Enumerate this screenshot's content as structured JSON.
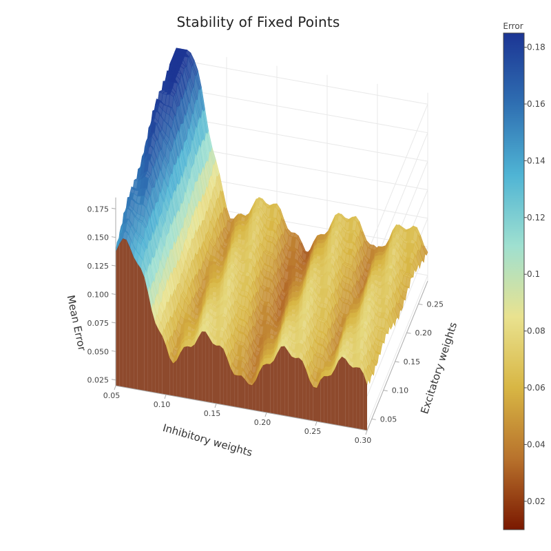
{
  "chart_data": {
    "type": "surface",
    "title": "Stability of Fixed Points",
    "x_axis": {
      "label": "Inhibitory weights",
      "range": [
        0.05,
        0.3
      ],
      "ticks": [
        "0.05",
        "0.10",
        "0.15",
        "0.20",
        "0.25",
        "0.30"
      ]
    },
    "y_axis": {
      "label": "Excitatory weights",
      "range": [
        0.03,
        0.29
      ],
      "ticks": [
        "0.05",
        "0.10",
        "0.15",
        "0.20",
        "0.25"
      ]
    },
    "z_axis": {
      "label": "Mean Error",
      "range": [
        0.02,
        0.185
      ],
      "ticks": [
        "0.025",
        "0.050",
        "0.075",
        "0.100",
        "0.125",
        "0.150",
        "0.175"
      ]
    },
    "colorbar": {
      "title": "Error",
      "range": [
        0.01,
        0.185
      ],
      "ticks": [
        "0.02",
        "0.04",
        "0.06",
        "0.08",
        "0.1",
        "0.12",
        "0.14",
        "0.16",
        "0.18"
      ],
      "colors": [
        "#7a1800",
        "#b8722c",
        "#d8b644",
        "#e9e28f",
        "#9fe0d0",
        "#4fb4d4",
        "#2f6fb2",
        "#1c3594"
      ]
    },
    "ridge_peaks_inhibitory": [
      0.07,
      0.14,
      0.22,
      0.28
    ],
    "ridge_valleys_inhibitory": [
      0.105,
      0.18,
      0.255
    ],
    "error_summary": {
      "max_error_low_inhibitory": 0.185,
      "ridge_error_level": 0.055,
      "valley_error_level": 0.025
    }
  }
}
